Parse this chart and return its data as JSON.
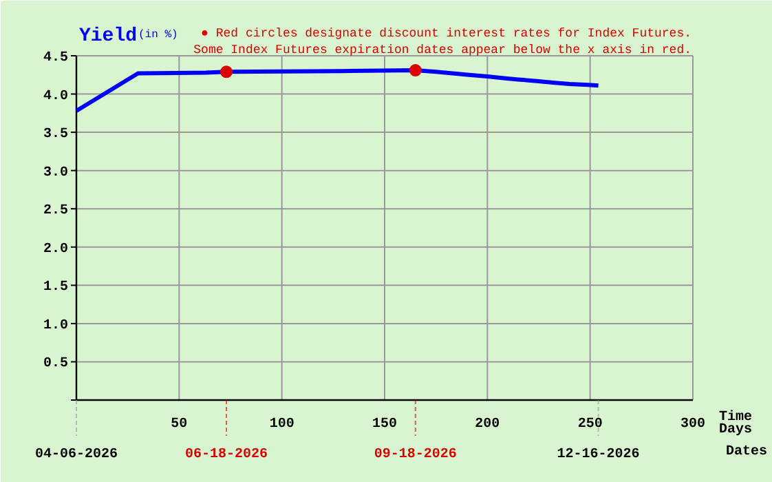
{
  "chart_data": {
    "type": "line",
    "title": "Yield",
    "ylabel": "(in %)",
    "xlabel": "Time Days",
    "annotations": [
      "● Red circles designate discount interest rates for Index Futures.",
      "Some Index Futures expiration dates appear below the x axis in red."
    ],
    "x2label": "Dates",
    "x2lim": [
      "2026-04-06",
      "2027-01-31"
    ],
    "x2ticks": [
      {
        "value": "2026-04-06",
        "label": "04-06-2026"
      },
      {
        "value": "2026-06-18",
        "label": "06-18-2026"
      },
      {
        "value": "2026-09-18",
        "label": "09-18-2026"
      },
      {
        "value": "2026-12-16",
        "label": "12-16-2026"
      }
    ],
    "series": [
      {
        "color": "#0000ff",
        "x": [
          0,
          30,
          63,
          73,
          129,
          165,
          175,
          183,
          191,
          200,
          207,
          215,
          224,
          232,
          240,
          249,
          254
        ],
        "values": [
          3.78,
          4.27,
          4.28,
          4.29,
          4.3,
          4.31,
          4.29,
          4.27,
          4.25,
          4.23,
          4.21,
          4.19,
          4.17,
          4.15,
          4.13,
          4.12,
          4.11
        ]
      },
      {
        "type": "scatter",
        "color": "#dd0000",
        "marker": "circle",
        "x": [
          73,
          165
        ],
        "values": [
          4.29,
          4.31
        ]
      }
    ],
    "xlim": [
      0,
      300
    ],
    "xticks": [
      {
        "value": 0,
        "label": null
      },
      50,
      100,
      150,
      200,
      250,
      300
    ],
    "ylim": [
      0,
      4.5
    ],
    "yticks": [
      {
        "value": 0,
        "label": null
      },
      {
        "value": 0.5,
        "label": "0.5"
      },
      {
        "value": 1,
        "label": "1.0"
      },
      {
        "value": 1.5,
        "label": "1.5"
      },
      {
        "value": 2,
        "label": "2.0"
      },
      {
        "value": 2.5,
        "label": "2.5"
      },
      {
        "value": 3,
        "label": "3.0"
      },
      {
        "value": 3.5,
        "label": "3.5"
      },
      {
        "value": 4,
        "label": "4.0"
      },
      {
        "value": 4.5,
        "label": "4.5"
      }
    ],
    "grid": true
  }
}
